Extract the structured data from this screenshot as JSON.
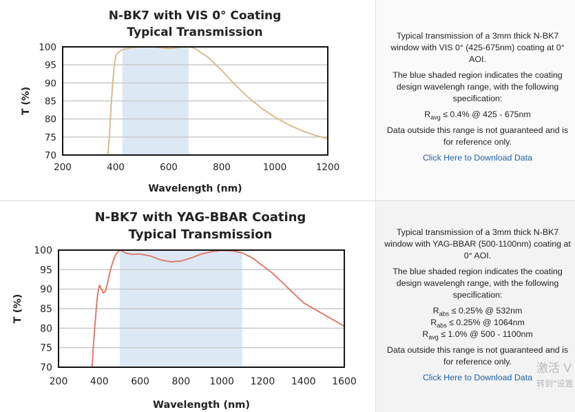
{
  "charts": [
    {
      "info": {
        "description": "Typical transmission of a 3mm thick N-BK7 window with VIS 0° (425-675nm) coating at 0° AOI.",
        "region_note": "The blue shaded region indicates the coating design wavelengh range, with the following specification:",
        "specs": [
          {
            "sym": "R",
            "sub": "avg",
            "text": " ≤ 0.4% @ 425 - 675nm"
          }
        ],
        "disclaimer": "Data outside this range is not guaranteed and is for reference only.",
        "link": "Click Here to Download Data"
      }
    },
    {
      "info": {
        "description": "Typical transmission of a 3mm thick N-BK7 window with YAG-BBAR (500-1100nm) coating at 0° AOI.",
        "region_note": "The blue shaded region indicates the coating design wavelengh range, with the following specification:",
        "specs": [
          {
            "sym": "R",
            "sub": "abs",
            "text": " ≤ 0.25% @ 532nm"
          },
          {
            "sym": "R",
            "sub": "abs",
            "text": " ≤ 0.25% @ 1064nm"
          },
          {
            "sym": "R",
            "sub": "avg",
            "text": " ≤ 1.0% @ 500 - 1100nm"
          }
        ],
        "disclaimer": "Data outside this range is not guaranteed and is for reference only.",
        "link": "Click Here to Download Data"
      }
    }
  ],
  "chart_data": [
    {
      "type": "line",
      "title": "N-BK7 with VIS 0° Coating",
      "subtitle": "Typical Transmission",
      "xlabel": "Wavelength (nm)",
      "ylabel": "T (%)",
      "xlim": [
        200,
        1200
      ],
      "ylim": [
        70,
        100
      ],
      "xticks": [
        200,
        400,
        600,
        800,
        1000,
        1200
      ],
      "yticks": [
        70,
        75,
        80,
        85,
        90,
        95,
        100
      ],
      "shaded_range": [
        425,
        675
      ],
      "shade_color": "#dce9f5",
      "line_color": "#d8bb8a",
      "grid": true,
      "series": [
        {
          "x": [
            370,
            375,
            380,
            385,
            390,
            395,
            400,
            410,
            420,
            440,
            460,
            500,
            550,
            600,
            650,
            680,
            700,
            750,
            800,
            850,
            900,
            950,
            1000,
            1050,
            1100,
            1150,
            1200
          ],
          "y": [
            70.0,
            74.0,
            80.0,
            86.0,
            91.0,
            95.0,
            97.5,
            98.5,
            99.0,
            99.5,
            99.8,
            100.0,
            99.9,
            99.5,
            99.9,
            100.0,
            99.5,
            97.0,
            93.5,
            89.5,
            86.0,
            83.0,
            80.5,
            78.5,
            76.8,
            75.5,
            74.5
          ]
        }
      ]
    },
    {
      "type": "line",
      "title": "N-BK7 with YAG-BBAR Coating",
      "subtitle": "Typical Transmission",
      "xlabel": "Wavelength (nm)",
      "ylabel": "T (%)",
      "xlim": [
        200,
        1600
      ],
      "ylim": [
        70,
        100
      ],
      "xticks": [
        200,
        400,
        600,
        800,
        1000,
        1200,
        1400,
        1600
      ],
      "yticks": [
        70,
        75,
        80,
        85,
        90,
        95,
        100
      ],
      "shaded_range": [
        500,
        1100
      ],
      "shade_color": "#dce9f5",
      "line_color": "#e07b6a",
      "grid": true,
      "series": [
        {
          "x": [
            365,
            370,
            380,
            390,
            400,
            410,
            420,
            430,
            440,
            450,
            460,
            470,
            480,
            490,
            500,
            510,
            530,
            560,
            600,
            650,
            700,
            750,
            800,
            850,
            900,
            950,
            1000,
            1050,
            1100,
            1150,
            1200,
            1250,
            1300,
            1350,
            1400,
            1450,
            1500,
            1550,
            1600
          ],
          "y": [
            70.0,
            75.0,
            82.0,
            88.0,
            91.0,
            90.0,
            89.0,
            89.5,
            91.5,
            94.0,
            96.0,
            97.5,
            98.8,
            99.5,
            100.0,
            99.8,
            99.2,
            98.9,
            99.0,
            98.5,
            97.5,
            97.0,
            97.2,
            98.0,
            99.0,
            99.6,
            99.9,
            99.8,
            99.3,
            98.0,
            96.0,
            94.0,
            91.5,
            89.0,
            86.5,
            85.0,
            83.5,
            82.0,
            80.5
          ]
        }
      ]
    }
  ],
  "watermark": {
    "line1": "激活 V",
    "line2": "转到\"设置"
  }
}
